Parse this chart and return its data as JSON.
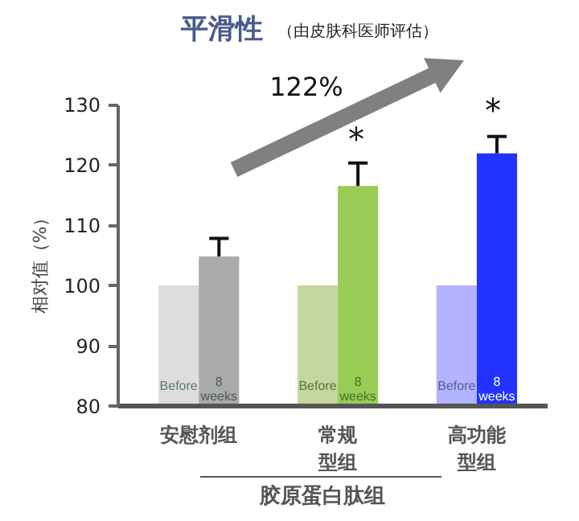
{
  "chart_data": {
    "type": "bar",
    "title": "平滑性",
    "subtitle": "（由皮肤科医师评估）",
    "ylabel": "相对值（%）",
    "categories": [
      "安慰剂组",
      "常规型组",
      "高功能型组"
    ],
    "series": [
      {
        "name": "Before",
        "colors": [
          "#dddddd",
          "#c5d6a0",
          "#b3b3ff"
        ],
        "values": [
          100,
          100,
          100
        ]
      },
      {
        "name": "8\nweeks",
        "colors": [
          "#aaaaaa",
          "#99cc55",
          "#2233ff"
        ],
        "values": [
          104.8,
          116.5,
          121.9
        ],
        "errors": [
          [
            104.8,
            107.8
          ],
          [
            116.5,
            120.3
          ],
          [
            121.9,
            124.7
          ]
        ]
      }
    ],
    "ylim": [
      80,
      130
    ],
    "yticks": [
      80,
      90,
      100,
      110,
      120,
      130
    ],
    "grid": false,
    "annotations": [
      "122%",
      "*",
      "*",
      "胶原蛋白肽组"
    ]
  }
}
